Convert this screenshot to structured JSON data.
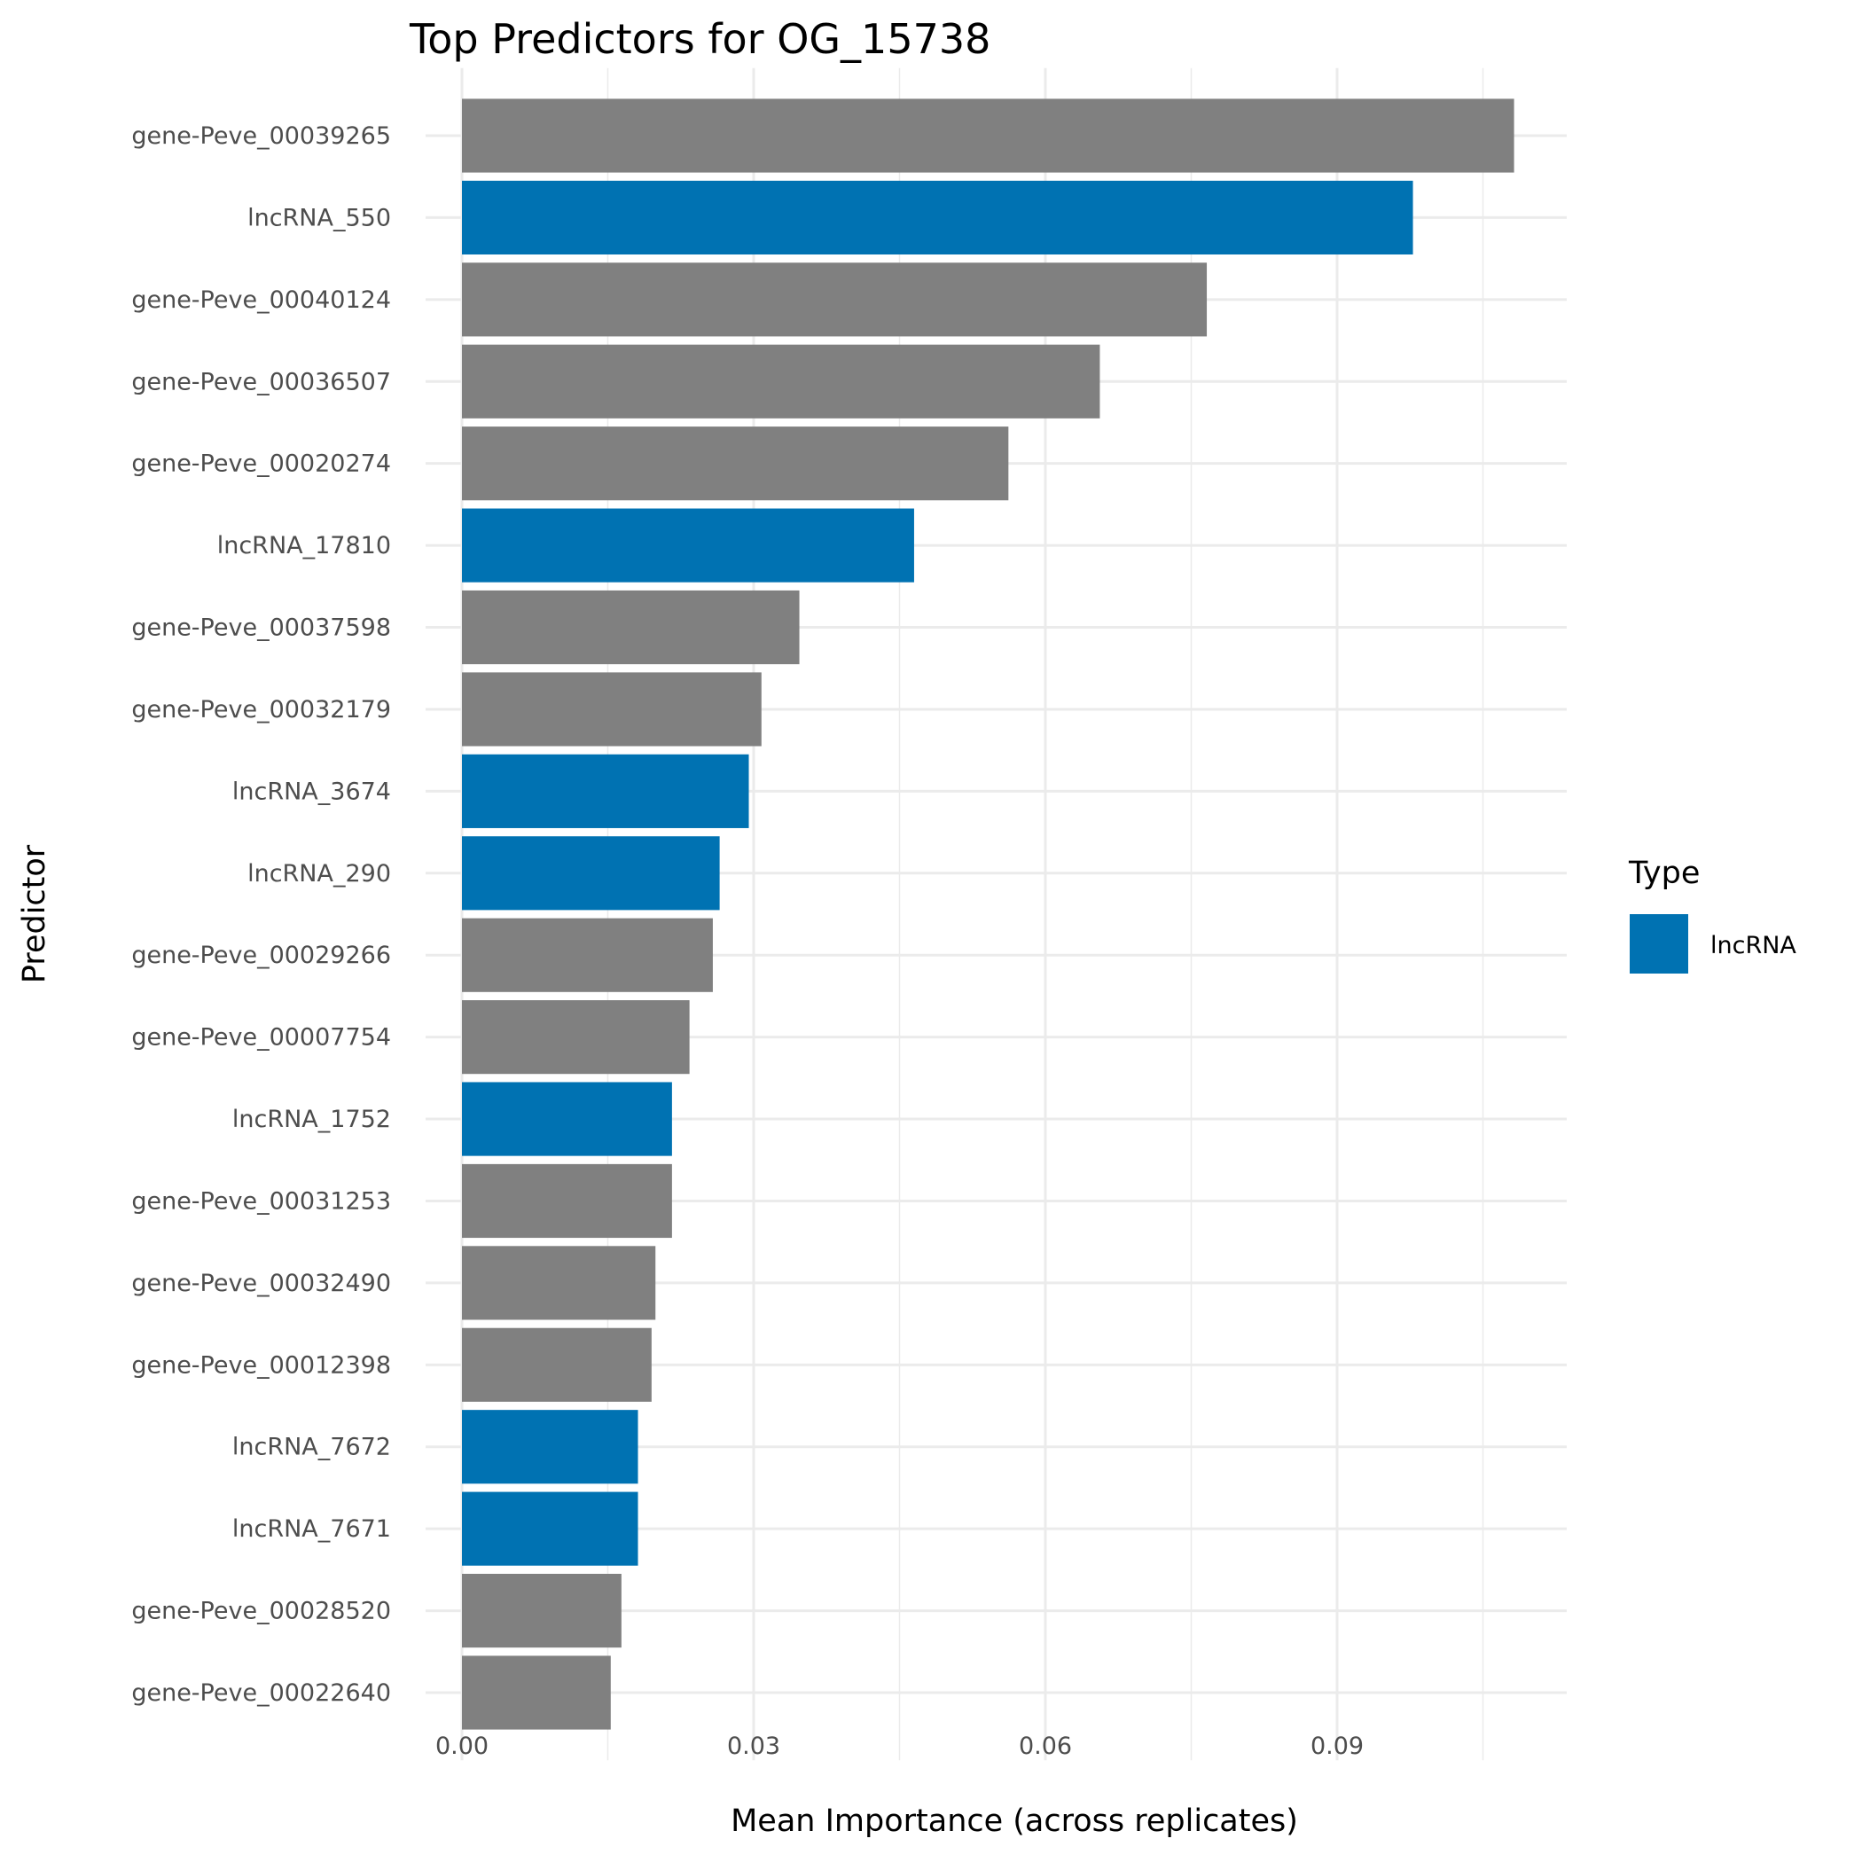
{
  "chart_data": {
    "type": "bar",
    "orientation": "horizontal",
    "title": "Top Predictors for OG_15738",
    "xlabel": "Mean Importance (across replicates)",
    "ylabel": "Predictor",
    "xlim": [
      -0.0025,
      0.1135
    ],
    "xticks": [
      0.0,
      0.03,
      0.06,
      0.09
    ],
    "xtick_labels": [
      "0.00",
      "0.03",
      "0.06",
      "0.09"
    ],
    "grid": true,
    "legend": {
      "title": "Type",
      "position": "right",
      "entries": [
        {
          "label": "lncRNA",
          "color": "#0072B2"
        }
      ]
    },
    "colors": {
      "lncRNA": "#0072B2",
      "gene": "#808080"
    },
    "categories": [
      "gene-Peve_00039265",
      "lncRNA_550",
      "gene-Peve_00040124",
      "gene-Peve_00036507",
      "gene-Peve_00020274",
      "lncRNA_17810",
      "gene-Peve_00037598",
      "gene-Peve_00032179",
      "lncRNA_3674",
      "lncRNA_290",
      "gene-Peve_00029266",
      "gene-Peve_00007754",
      "lncRNA_1752",
      "gene-Peve_00031253",
      "gene-Peve_00032490",
      "gene-Peve_00012398",
      "lncRNA_7672",
      "lncRNA_7671",
      "gene-Peve_00028520",
      "gene-Peve_00022640"
    ],
    "types": [
      "gene",
      "lncRNA",
      "gene",
      "gene",
      "gene",
      "lncRNA",
      "gene",
      "gene",
      "lncRNA",
      "lncRNA",
      "gene",
      "gene",
      "lncRNA",
      "gene",
      "gene",
      "gene",
      "lncRNA",
      "lncRNA",
      "gene",
      "gene"
    ],
    "values": [
      0.1082,
      0.0978,
      0.0766,
      0.0656,
      0.0562,
      0.0465,
      0.0347,
      0.0308,
      0.0295,
      0.0265,
      0.0258,
      0.0234,
      0.0216,
      0.0216,
      0.0199,
      0.0195,
      0.0181,
      0.0181,
      0.0164,
      0.0153
    ]
  }
}
